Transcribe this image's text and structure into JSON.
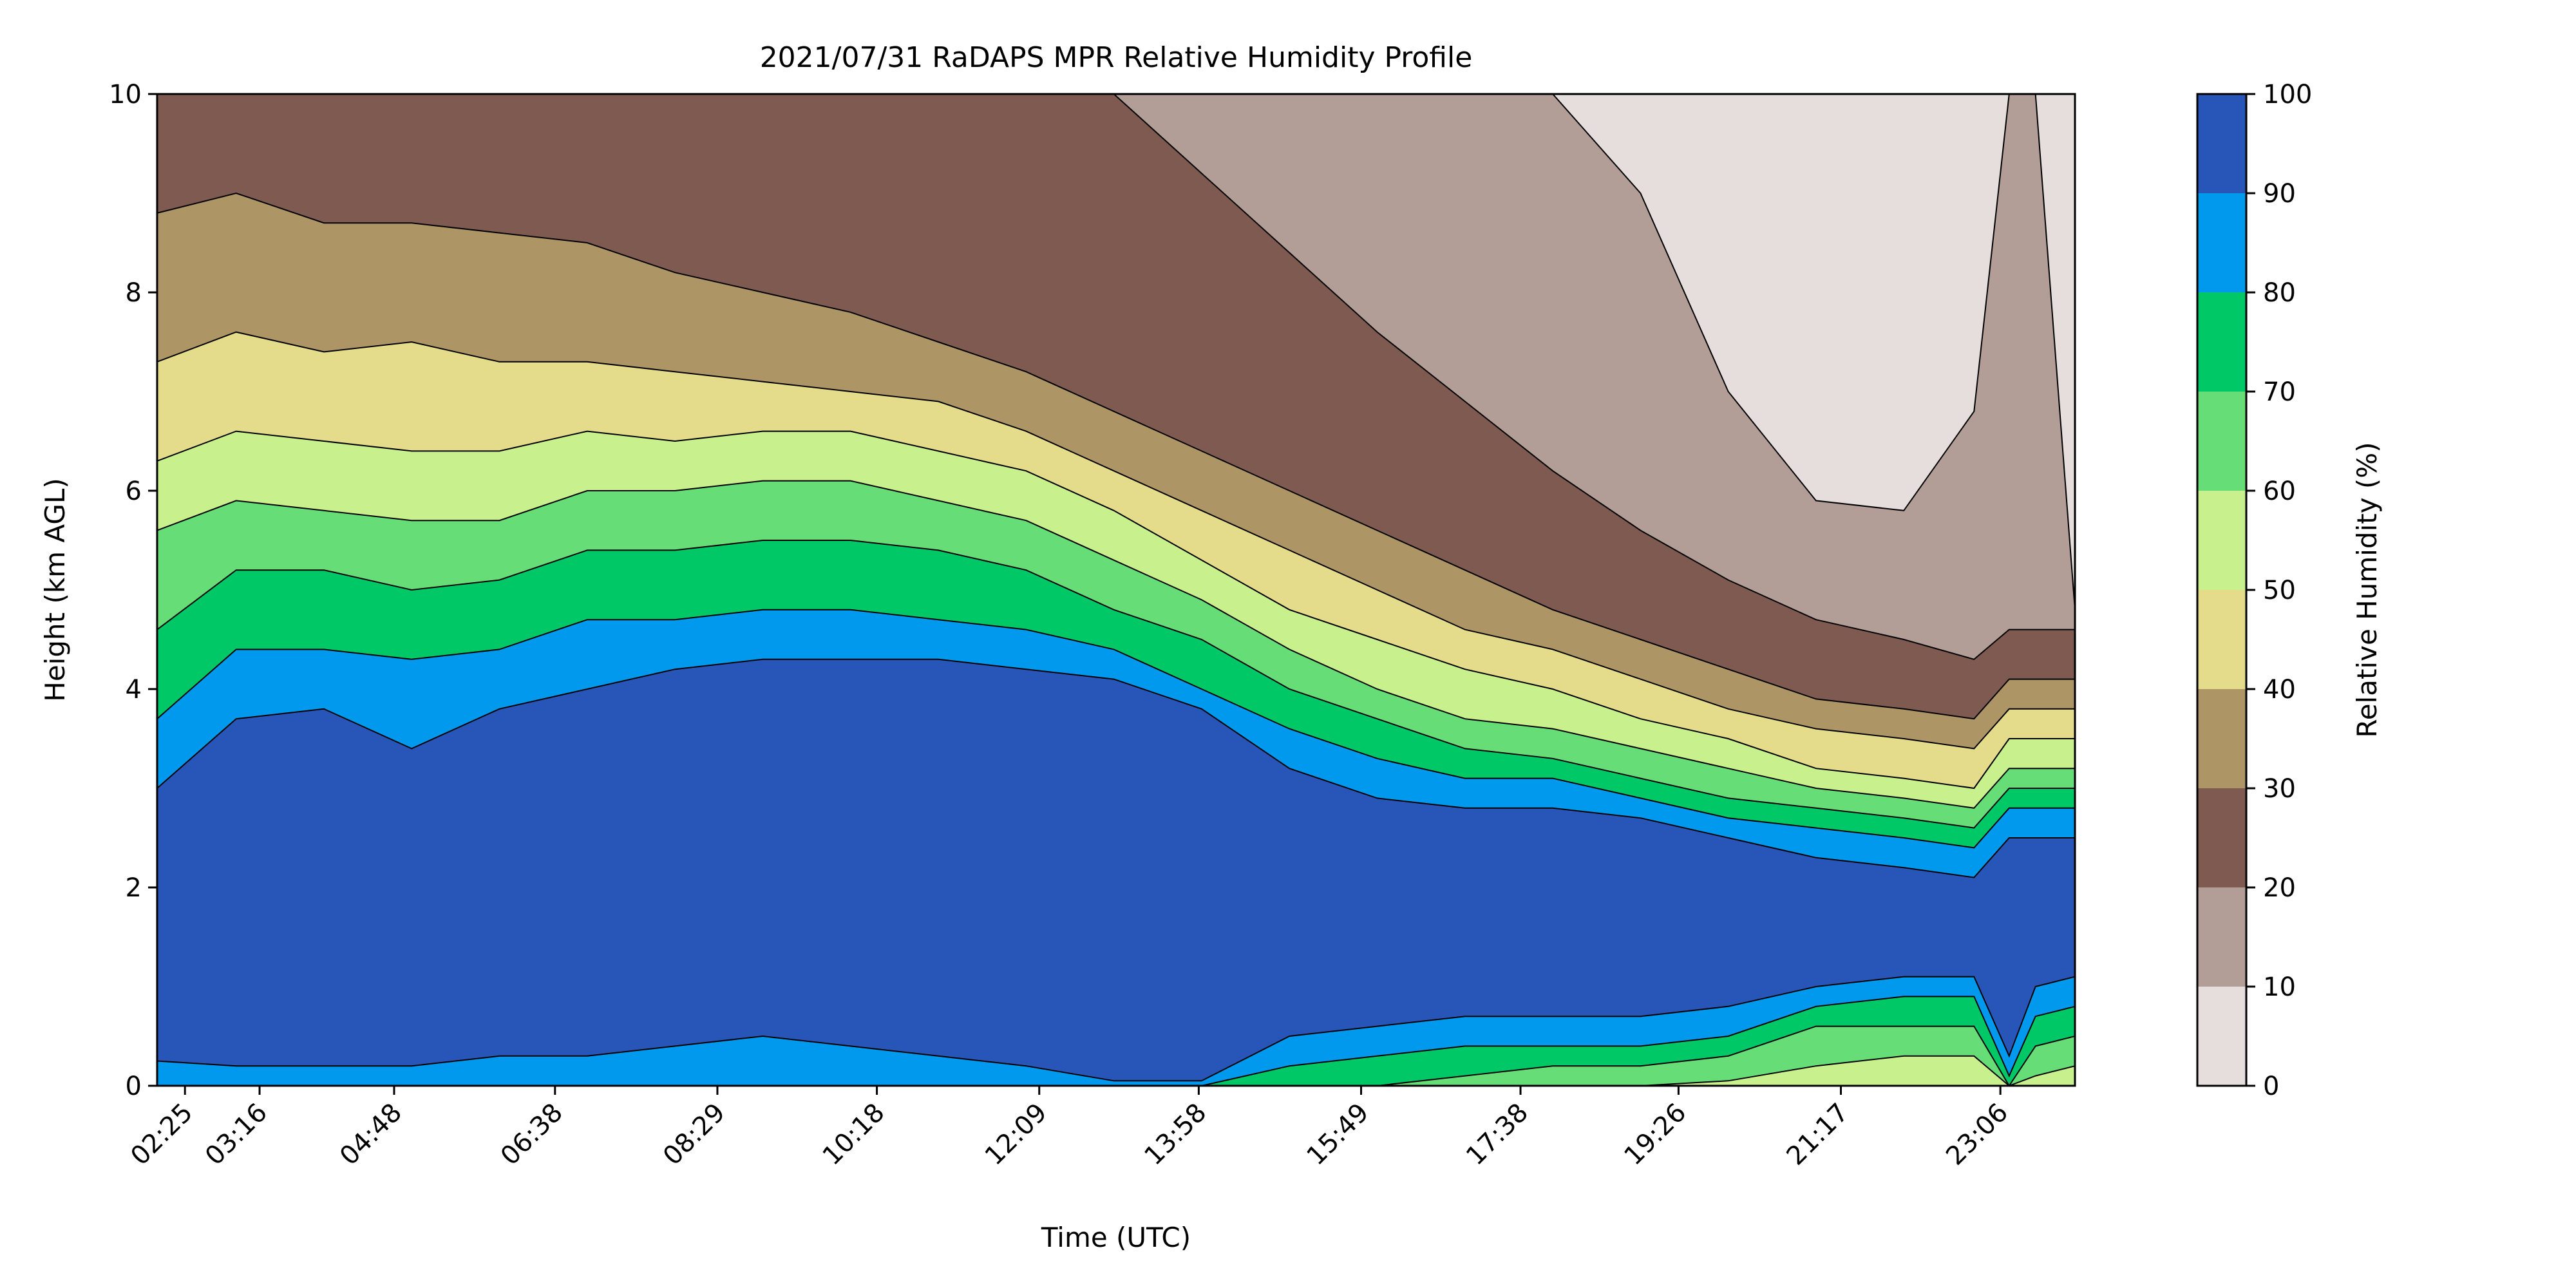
{
  "chart_data": {
    "type": "heatmap",
    "subtype": "filled-contour",
    "title": "2021/07/31 RaDAPS MPR Relative Humidity Profile",
    "xlabel": "Time (UTC)",
    "ylabel": "Height (km AGL)",
    "x_ticks": [
      "02:25",
      "03:16",
      "04:48",
      "06:38",
      "08:29",
      "10:18",
      "12:09",
      "13:58",
      "15:49",
      "17:38",
      "19:26",
      "21:17",
      "23:06"
    ],
    "x_tick_hours": [
      2.417,
      3.267,
      4.8,
      6.633,
      8.483,
      10.3,
      12.15,
      13.967,
      15.817,
      17.633,
      19.433,
      21.283,
      23.1
    ],
    "xlim_hours": [
      2.1,
      23.95
    ],
    "ylim": [
      0,
      10
    ],
    "y_ticks": [
      0,
      2,
      4,
      6,
      8,
      10
    ],
    "colorbar": {
      "label": "Relative Humidity (%)",
      "ticks": [
        0,
        10,
        20,
        30,
        40,
        50,
        60,
        70,
        80,
        90,
        100
      ],
      "levels": [
        0,
        10,
        20,
        30,
        40,
        50,
        60,
        70,
        80,
        90,
        100
      ],
      "colors": [
        "#e6dedc",
        "#b29d97",
        "#7f5a51",
        "#ae9565",
        "#e4dc8a",
        "#c8f08c",
        "#66dd77",
        "#00c866",
        "#0099ee",
        "#2856b8"
      ]
    },
    "contour_boundaries_km": {
      "hours": [
        2.1,
        3,
        4,
        5,
        6,
        7,
        8,
        9,
        10,
        11,
        12,
        13,
        14,
        15,
        16,
        17,
        18,
        19,
        20,
        21,
        22,
        22.8,
        23.2,
        23.5,
        23.95
      ],
      "rh_90": [
        3.0,
        3.7,
        3.8,
        3.4,
        3.8,
        4.0,
        4.2,
        4.3,
        4.3,
        4.3,
        4.2,
        4.1,
        3.8,
        3.2,
        2.9,
        2.8,
        2.8,
        2.7,
        2.5,
        2.3,
        2.2,
        2.1,
        2.5,
        2.5,
        2.5
      ],
      "rh_80": [
        3.7,
        4.4,
        4.4,
        4.3,
        4.4,
        4.7,
        4.7,
        4.8,
        4.8,
        4.7,
        4.6,
        4.4,
        4.0,
        3.6,
        3.3,
        3.1,
        3.1,
        2.9,
        2.7,
        2.6,
        2.5,
        2.4,
        2.8,
        2.8,
        2.8
      ],
      "rh_70": [
        4.6,
        5.2,
        5.2,
        5.0,
        5.1,
        5.4,
        5.4,
        5.5,
        5.5,
        5.4,
        5.2,
        4.8,
        4.5,
        4.0,
        3.7,
        3.4,
        3.3,
        3.1,
        2.9,
        2.8,
        2.7,
        2.6,
        3.0,
        3.0,
        3.0
      ],
      "rh_60": [
        5.6,
        5.9,
        5.8,
        5.7,
        5.7,
        6.0,
        6.0,
        6.1,
        6.1,
        5.9,
        5.7,
        5.3,
        4.9,
        4.4,
        4.0,
        3.7,
        3.6,
        3.4,
        3.2,
        3.0,
        2.9,
        2.8,
        3.2,
        3.2,
        3.2
      ],
      "rh_50": [
        6.3,
        6.6,
        6.5,
        6.4,
        6.4,
        6.6,
        6.5,
        6.6,
        6.6,
        6.4,
        6.2,
        5.8,
        5.3,
        4.8,
        4.5,
        4.2,
        4.0,
        3.7,
        3.5,
        3.2,
        3.1,
        3.0,
        3.5,
        3.5,
        3.5
      ],
      "rh_40": [
        7.3,
        7.6,
        7.4,
        7.5,
        7.3,
        7.3,
        7.2,
        7.1,
        7.0,
        6.9,
        6.6,
        6.2,
        5.8,
        5.4,
        5.0,
        4.6,
        4.4,
        4.1,
        3.8,
        3.6,
        3.5,
        3.4,
        3.8,
        3.8,
        3.8
      ],
      "rh_30": [
        8.8,
        9.0,
        8.7,
        8.7,
        8.6,
        8.5,
        8.2,
        8.0,
        7.8,
        7.5,
        7.2,
        6.8,
        6.4,
        6.0,
        5.6,
        5.2,
        4.8,
        4.5,
        4.2,
        3.9,
        3.8,
        3.7,
        4.1,
        4.1,
        4.1
      ],
      "rh_20": [
        10,
        10,
        10,
        10,
        10,
        10,
        10,
        10,
        10,
        10,
        10,
        10,
        9.2,
        8.4,
        7.6,
        6.9,
        6.2,
        5.6,
        5.1,
        4.7,
        4.5,
        4.3,
        4.6,
        4.6,
        4.6
      ],
      "rh_10": [
        10,
        10,
        10,
        10,
        10,
        10,
        10,
        10,
        10,
        10,
        10,
        10,
        10,
        10,
        10,
        10,
        10,
        9.0,
        7.0,
        5.9,
        5.8,
        6.8,
        10,
        10,
        4.8
      ],
      "low_rh_90": [
        0.25,
        0.2,
        0.2,
        0.2,
        0.3,
        0.3,
        0.4,
        0.5,
        0.4,
        0.3,
        0.2,
        0.05,
        0.05,
        0.5,
        0.6,
        0.7,
        0.7,
        0.7,
        0.8,
        1.0,
        1.1,
        1.1,
        0.3,
        1.0,
        1.1
      ],
      "low_rh_80": [
        0,
        0,
        0,
        0,
        0,
        0,
        0,
        0,
        0,
        0,
        0,
        0,
        0,
        0.2,
        0.3,
        0.4,
        0.4,
        0.4,
        0.5,
        0.8,
        0.9,
        0.9,
        0.1,
        0.7,
        0.8
      ],
      "low_rh_70": [
        0,
        0,
        0,
        0,
        0,
        0,
        0,
        0,
        0,
        0,
        0,
        0,
        0,
        0,
        0,
        0.1,
        0.2,
        0.2,
        0.3,
        0.6,
        0.6,
        0.6,
        0,
        0.4,
        0.5
      ],
      "low_rh_60": [
        0,
        0,
        0,
        0,
        0,
        0,
        0,
        0,
        0,
        0,
        0,
        0,
        0,
        0,
        0,
        0,
        0,
        0,
        0.05,
        0.2,
        0.3,
        0.3,
        0,
        0.1,
        0.2
      ]
    }
  }
}
